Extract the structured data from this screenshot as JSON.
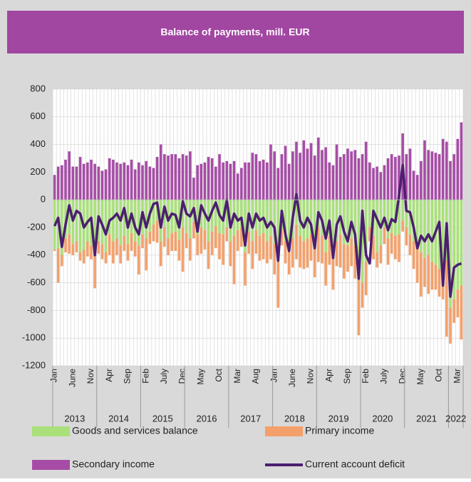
{
  "chart_data": {
    "type": "bar_line",
    "title": "Balance of payments, mill. EUR",
    "categories": [
      "Jan",
      null,
      null,
      null,
      null,
      "June",
      null,
      null,
      null,
      null,
      "Nov",
      null,
      null,
      null,
      null,
      "Apr",
      null,
      null,
      null,
      null,
      "Sep",
      null,
      null,
      null,
      null,
      "Feb",
      null,
      null,
      null,
      null,
      "July",
      null,
      null,
      null,
      null,
      "Dec",
      null,
      null,
      null,
      null,
      "May",
      null,
      null,
      null,
      null,
      "Oct",
      null,
      null,
      null,
      null,
      "Mar",
      null,
      null,
      null,
      null,
      "Aug",
      null,
      null,
      null,
      null,
      "Jan",
      null,
      null,
      null,
      null,
      "June",
      null,
      null,
      null,
      null,
      "Nov",
      null,
      null,
      null,
      null,
      "Apr",
      null,
      null,
      null,
      null,
      "Sep",
      null,
      null,
      null,
      null,
      "Feb",
      null,
      null,
      null,
      null,
      "July",
      null,
      null,
      null,
      null,
      "Dec",
      null,
      null,
      null,
      null,
      "May",
      null,
      null,
      null,
      null,
      "Oct",
      null,
      null,
      null,
      null,
      "Mar",
      null
    ],
    "year_groups": [
      {
        "label": "2013",
        "months": 12
      },
      {
        "label": "2014",
        "months": 12
      },
      {
        "label": "2015",
        "months": 12
      },
      {
        "label": "2016",
        "months": 12
      },
      {
        "label": "2017",
        "months": 12
      },
      {
        "label": "2018",
        "months": 12
      },
      {
        "label": "2019",
        "months": 12
      },
      {
        "label": "2020",
        "months": 12
      },
      {
        "label": "2021",
        "months": 12
      },
      {
        "label": "2022",
        "months": 4
      }
    ],
    "ylim": [
      -1200,
      800
    ],
    "yticks": [
      -1200,
      -1000,
      -800,
      -600,
      -400,
      -200,
      0,
      200,
      400,
      600,
      800
    ],
    "grid": true,
    "series": [
      {
        "name": "Goods and services balance",
        "color": "#a9e07a",
        "kind": "bar",
        "stack": "neg",
        "values": [
          -360,
          -350,
          -400,
          -280,
          -250,
          -320,
          -300,
          -380,
          -360,
          -300,
          -330,
          -400,
          -300,
          -320,
          -380,
          -250,
          -300,
          -280,
          -330,
          -260,
          -320,
          -240,
          -300,
          -330,
          -250,
          -280,
          -230,
          -180,
          -150,
          -300,
          -200,
          -280,
          -240,
          -230,
          -290,
          -200,
          -240,
          -280,
          -160,
          -250,
          -200,
          -220,
          -300,
          -230,
          -190,
          -240,
          -250,
          -200,
          -300,
          -260,
          -220,
          -200,
          -380,
          -230,
          -300,
          -220,
          -260,
          -240,
          -300,
          -260,
          -320,
          -450,
          -220,
          -300,
          -360,
          -280,
          -180,
          -260,
          -300,
          -280,
          -250,
          -330,
          -200,
          -260,
          -380,
          -260,
          -380,
          -300,
          -250,
          -320,
          -330,
          -280,
          -330,
          -550,
          -600,
          -450,
          -200,
          -260,
          -380,
          -330,
          -200,
          -280,
          -240,
          -260,
          -250,
          -150,
          -200,
          -250,
          -300,
          -350,
          -380,
          -420,
          -400,
          -450,
          -470,
          -500,
          -520,
          -440,
          -780,
          -720,
          -650,
          -620
        ]
      },
      {
        "name": "Primary income",
        "color": "#f4a06a",
        "kind": "bar",
        "stack": "neg",
        "values": [
          -10,
          -250,
          -80,
          -100,
          -140,
          -80,
          -80,
          -60,
          -100,
          -110,
          -100,
          -240,
          -90,
          -110,
          -80,
          -150,
          -160,
          -120,
          -130,
          -110,
          -120,
          -130,
          -110,
          -210,
          -100,
          -230,
          -90,
          -120,
          -160,
          -180,
          -140,
          -120,
          -130,
          -140,
          -150,
          -320,
          -110,
          -160,
          -120,
          -150,
          -190,
          -140,
          -200,
          -170,
          -160,
          -190,
          -220,
          -100,
          -180,
          -350,
          -150,
          -140,
          -240,
          -160,
          -200,
          -170,
          -180,
          -190,
          -160,
          -170,
          -220,
          -330,
          -110,
          -160,
          -180,
          -210,
          -250,
          -230,
          -200,
          -210,
          -190,
          -230,
          -250,
          -200,
          -240,
          -210,
          -270,
          -180,
          -240,
          -250,
          -190,
          -200,
          -240,
          -430,
          -180,
          -240,
          -100,
          -170,
          -110,
          -130,
          -120,
          -190,
          -150,
          -170,
          -200,
          -80,
          -130,
          -150,
          -200,
          -250,
          -320,
          -210,
          -280,
          -200,
          -180,
          -200,
          -200,
          -550,
          -260,
          -170,
          -200,
          -390
        ]
      },
      {
        "name": "Secondary income",
        "color": "#a64ca6",
        "kind": "bar",
        "stack": "pos",
        "values": [
          180,
          240,
          250,
          290,
          350,
          240,
          240,
          310,
          260,
          270,
          290,
          260,
          240,
          210,
          220,
          300,
          290,
          270,
          260,
          270,
          250,
          290,
          220,
          270,
          250,
          280,
          240,
          230,
          310,
          400,
          330,
          320,
          330,
          330,
          300,
          330,
          320,
          350,
          160,
          250,
          260,
          270,
          310,
          300,
          240,
          330,
          270,
          280,
          260,
          280,
          190,
          230,
          270,
          270,
          340,
          330,
          280,
          290,
          270,
          400,
          350,
          230,
          330,
          390,
          260,
          350,
          420,
          340,
          430,
          370,
          410,
          320,
          450,
          360,
          380,
          270,
          250,
          400,
          310,
          330,
          370,
          350,
          360,
          300,
          330,
          420,
          270,
          230,
          240,
          200,
          250,
          300,
          330,
          310,
          320,
          480,
          330,
          370,
          210,
          180,
          280,
          430,
          360,
          350,
          340,
          330,
          440,
          420,
          280,
          330,
          440,
          560
        ]
      },
      {
        "name": "Current account deficit",
        "color": "#4b1f6f",
        "kind": "line",
        "values": [
          -190,
          -130,
          -340,
          -180,
          -40,
          -150,
          -80,
          -100,
          -200,
          -160,
          -130,
          -400,
          -120,
          -180,
          -250,
          -150,
          -130,
          -100,
          -150,
          -60,
          -200,
          -100,
          -200,
          -250,
          -90,
          -200,
          -100,
          -30,
          -20,
          -200,
          -50,
          -150,
          -100,
          -110,
          -200,
          -10,
          -100,
          -120,
          -60,
          -230,
          -40,
          -100,
          -150,
          -80,
          -20,
          -110,
          -150,
          0,
          -200,
          -100,
          -150,
          -130,
          -330,
          -100,
          -200,
          -100,
          -150,
          -130,
          -200,
          -160,
          -200,
          -440,
          -80,
          -250,
          -370,
          -130,
          40,
          -150,
          -200,
          -130,
          -180,
          -350,
          -90,
          -150,
          -280,
          -150,
          -420,
          -180,
          -120,
          -230,
          -300,
          -160,
          -250,
          -570,
          -80,
          -400,
          -460,
          -80,
          -140,
          -200,
          -130,
          -220,
          -140,
          -160,
          30,
          250,
          -80,
          -90,
          -200,
          -350,
          -260,
          -300,
          -250,
          -300,
          -230,
          -160,
          -620,
          -170,
          -700,
          -490,
          -470,
          -460
        ]
      }
    ]
  }
}
